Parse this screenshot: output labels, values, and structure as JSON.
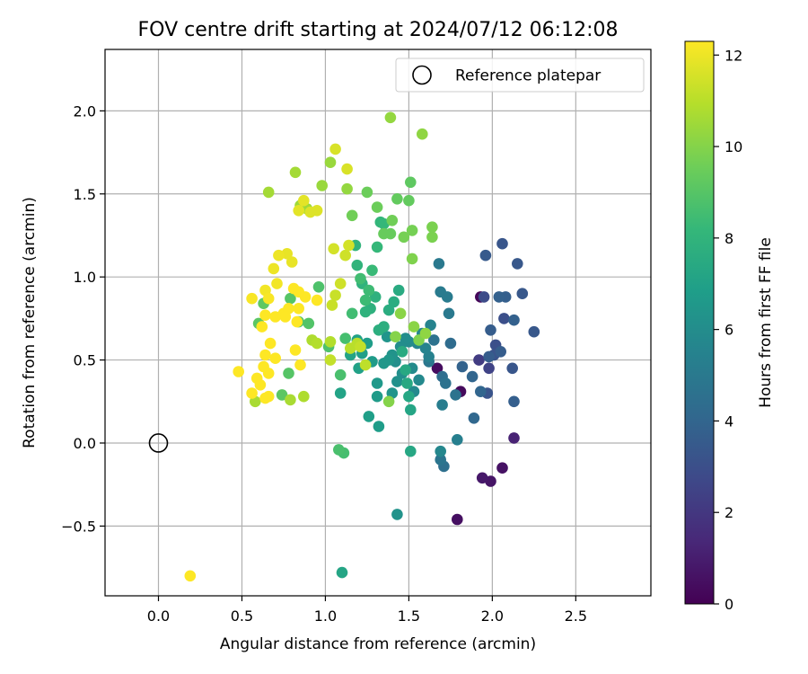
{
  "chart_data": {
    "type": "scatter",
    "title": "FOV centre drift starting at 2024/07/12 06:12:08",
    "xlabel": "Angular distance from reference (arcmin)",
    "ylabel": "Rotation from reference (arcmin)",
    "xlim": [
      -0.32,
      2.95
    ],
    "ylim": [
      -0.92,
      2.37
    ],
    "xticks": [
      0.0,
      0.5,
      1.0,
      1.5,
      2.0,
      2.5
    ],
    "xtick_labels": [
      "0.0",
      "0.5",
      "1.0",
      "1.5",
      "2.0",
      "2.5"
    ],
    "yticks": [
      -0.5,
      0.0,
      0.5,
      1.0,
      1.5,
      2.0
    ],
    "ytick_labels": [
      "−0.5",
      "0.0",
      "0.5",
      "1.0",
      "1.5",
      "2.0"
    ],
    "grid": true,
    "legend": {
      "placement": "top-right",
      "entries": [
        "Reference platepar"
      ]
    },
    "reference_point": {
      "x": 0.0,
      "y": 0.0,
      "marker": "hollow-circle"
    },
    "colorbar": {
      "label": "Hours from first FF file",
      "colormap": "viridis",
      "range": [
        0,
        12.3
      ],
      "ticks": [
        0,
        2,
        4,
        6,
        8,
        10,
        12
      ],
      "tick_labels": [
        "0",
        "2",
        "4",
        "6",
        "8",
        "10",
        "12"
      ]
    },
    "colormap_stops": [
      "#440154",
      "#482878",
      "#3e4989",
      "#31688e",
      "#26828e",
      "#1f9e89",
      "#35b779",
      "#6ece58",
      "#b5de2b",
      "#fde725"
    ],
    "point_fields": [
      "x",
      "y",
      "hours"
    ],
    "points": [
      [
        1.93,
        0.88,
        0.2
      ],
      [
        1.81,
        0.31,
        0.3
      ],
      [
        1.67,
        0.45,
        0.4
      ],
      [
        1.79,
        -0.46,
        0.5
      ],
      [
        2.06,
        -0.15,
        0.6
      ],
      [
        1.99,
        -0.23,
        0.7
      ],
      [
        1.94,
        -0.21,
        0.8
      ],
      [
        2.13,
        0.03,
        1.2
      ],
      [
        1.92,
        0.5,
        2.2
      ],
      [
        1.98,
        0.45,
        2.5
      ],
      [
        1.95,
        0.88,
        2.8
      ],
      [
        2.02,
        0.59,
        3.0
      ],
      [
        2.07,
        0.75,
        3.0
      ],
      [
        2.01,
        0.53,
        3.2
      ],
      [
        1.97,
        0.3,
        3.2
      ],
      [
        2.06,
        1.2,
        3.3
      ],
      [
        2.12,
        0.45,
        3.3
      ],
      [
        2.18,
        0.9,
        3.4
      ],
      [
        2.15,
        1.08,
        3.4
      ],
      [
        2.25,
        0.67,
        3.4
      ],
      [
        1.96,
        1.13,
        3.5
      ],
      [
        1.99,
        0.68,
        3.6
      ],
      [
        1.98,
        0.52,
        3.6
      ],
      [
        2.05,
        0.55,
        3.6
      ],
      [
        2.08,
        0.88,
        3.7
      ],
      [
        2.13,
        0.25,
        3.7
      ],
      [
        2.04,
        0.88,
        3.8
      ],
      [
        2.13,
        0.74,
        3.8
      ],
      [
        1.82,
        0.46,
        3.9
      ],
      [
        1.88,
        0.4,
        4.0
      ],
      [
        1.93,
        0.31,
        4.0
      ],
      [
        1.89,
        0.15,
        4.1
      ],
      [
        1.75,
        0.6,
        4.3
      ],
      [
        1.7,
        0.4,
        4.4
      ],
      [
        1.71,
        -0.14,
        4.5
      ],
      [
        1.65,
        0.62,
        4.6
      ],
      [
        1.72,
        0.36,
        4.6
      ],
      [
        1.78,
        0.29,
        4.7
      ],
      [
        1.69,
        -0.1,
        4.8
      ],
      [
        1.62,
        0.49,
        4.9
      ],
      [
        1.74,
        0.78,
        5.0
      ],
      [
        1.68,
        1.08,
        5.0
      ],
      [
        1.69,
        0.91,
        5.1
      ],
      [
        1.73,
        0.88,
        5.1
      ],
      [
        1.7,
        0.23,
        5.2
      ],
      [
        1.79,
        0.02,
        5.3
      ],
      [
        1.62,
        0.52,
        5.4
      ],
      [
        1.63,
        0.71,
        5.5
      ],
      [
        1.6,
        0.57,
        5.5
      ],
      [
        1.55,
        0.6,
        5.6
      ],
      [
        1.58,
        0.66,
        5.7
      ],
      [
        1.69,
        -0.05,
        5.7
      ],
      [
        1.53,
        0.31,
        5.8
      ],
      [
        1.56,
        0.38,
        5.8
      ],
      [
        1.52,
        0.45,
        5.9
      ],
      [
        1.5,
        0.61,
        5.9
      ],
      [
        1.48,
        0.63,
        6.0
      ],
      [
        1.45,
        0.58,
        6.0
      ],
      [
        1.46,
        0.42,
        6.1
      ],
      [
        1.42,
        0.49,
        6.1
      ],
      [
        1.43,
        0.37,
        6.2
      ],
      [
        1.43,
        -0.43,
        6.3
      ],
      [
        1.4,
        0.53,
        6.3
      ],
      [
        1.4,
        0.3,
        6.4
      ],
      [
        1.37,
        0.64,
        6.4
      ],
      [
        1.38,
        0.5,
        6.5
      ],
      [
        1.35,
        0.48,
        6.5
      ],
      [
        1.31,
        0.36,
        6.6
      ],
      [
        1.31,
        0.28,
        6.7
      ],
      [
        1.28,
        0.49,
        6.7
      ],
      [
        1.32,
        0.1,
        6.8
      ],
      [
        1.25,
        0.6,
        6.8
      ],
      [
        1.26,
        0.16,
        6.9
      ],
      [
        1.22,
        0.54,
        6.9
      ],
      [
        1.19,
        0.62,
        7.0
      ],
      [
        1.2,
        0.45,
        7.0
      ],
      [
        1.15,
        0.53,
        7.1
      ],
      [
        1.09,
        0.3,
        7.1
      ],
      [
        1.1,
        -0.78,
        7.2
      ],
      [
        1.51,
        0.2,
        7.2
      ],
      [
        1.51,
        -0.05,
        7.3
      ],
      [
        1.5,
        0.28,
        7.3
      ],
      [
        1.49,
        0.36,
        7.4
      ],
      [
        1.48,
        0.44,
        7.4
      ],
      [
        1.46,
        0.55,
        7.5
      ],
      [
        1.44,
        0.92,
        7.5
      ],
      [
        1.41,
        0.85,
        7.6
      ],
      [
        1.38,
        0.8,
        7.6
      ],
      [
        1.35,
        0.7,
        7.7
      ],
      [
        1.32,
        0.68,
        7.7
      ],
      [
        1.3,
        0.88,
        7.8
      ],
      [
        1.27,
        0.81,
        7.8
      ],
      [
        1.24,
        0.79,
        7.9
      ],
      [
        1.22,
        0.96,
        7.9
      ],
      [
        1.19,
        1.07,
        8.0
      ],
      [
        1.18,
        1.19,
        8.0
      ],
      [
        1.33,
        1.33,
        8.1
      ],
      [
        1.35,
        1.32,
        8.2
      ],
      [
        1.31,
        1.18,
        8.2
      ],
      [
        1.28,
        1.04,
        8.3
      ],
      [
        1.26,
        0.92,
        8.4
      ],
      [
        1.24,
        0.86,
        8.4
      ],
      [
        1.21,
        0.99,
        8.5
      ],
      [
        1.16,
        0.78,
        8.5
      ],
      [
        1.12,
        0.63,
        8.6
      ],
      [
        1.11,
        -0.06,
        8.6
      ],
      [
        1.08,
        -0.04,
        8.7
      ],
      [
        1.09,
        0.41,
        8.7
      ],
      [
        1.02,
        0.58,
        8.8
      ],
      [
        0.96,
        0.94,
        8.8
      ],
      [
        0.9,
        0.72,
        8.9
      ],
      [
        0.84,
        0.73,
        8.9
      ],
      [
        0.79,
        0.87,
        9.0
      ],
      [
        0.78,
        0.42,
        9.0
      ],
      [
        0.74,
        0.29,
        9.1
      ],
      [
        0.6,
        0.72,
        9.1
      ],
      [
        0.63,
        0.84,
        9.2
      ],
      [
        1.51,
        1.57,
        9.2
      ],
      [
        1.5,
        1.46,
        9.3
      ],
      [
        1.43,
        1.47,
        9.3
      ],
      [
        1.39,
        1.26,
        9.4
      ],
      [
        1.35,
        1.26,
        9.4
      ],
      [
        1.31,
        1.42,
        9.5
      ],
      [
        1.25,
        1.51,
        9.5
      ],
      [
        1.16,
        1.37,
        9.6
      ],
      [
        1.4,
        1.34,
        9.6
      ],
      [
        1.47,
        1.24,
        9.7
      ],
      [
        1.52,
        1.28,
        9.7
      ],
      [
        1.64,
        1.3,
        9.8
      ],
      [
        1.64,
        1.24,
        9.8
      ],
      [
        1.52,
        1.11,
        9.9
      ],
      [
        1.56,
        0.62,
        9.9
      ],
      [
        1.38,
        0.25,
        10.0
      ],
      [
        1.42,
        0.64,
        10.0
      ],
      [
        1.45,
        0.78,
        10.1
      ],
      [
        1.53,
        0.7,
        10.1
      ],
      [
        1.6,
        0.66,
        10.2
      ],
      [
        1.58,
        1.86,
        10.2
      ],
      [
        1.39,
        1.96,
        10.3
      ],
      [
        1.13,
        1.53,
        10.3
      ],
      [
        1.03,
        1.69,
        10.4
      ],
      [
        0.98,
        1.55,
        10.4
      ],
      [
        0.85,
        1.43,
        10.5
      ],
      [
        0.89,
        1.41,
        10.5
      ],
      [
        0.82,
        1.63,
        10.6
      ],
      [
        0.66,
        1.51,
        10.6
      ],
      [
        0.58,
        0.25,
        10.7
      ],
      [
        0.79,
        0.26,
        10.7
      ],
      [
        0.87,
        0.28,
        10.8
      ],
      [
        0.92,
        0.62,
        10.8
      ],
      [
        0.95,
        0.6,
        10.9
      ],
      [
        1.03,
        0.61,
        10.9
      ],
      [
        1.15,
        0.57,
        11.0
      ],
      [
        1.19,
        0.6,
        11.0
      ],
      [
        1.24,
        0.47,
        11.1
      ],
      [
        1.21,
        0.58,
        11.2
      ],
      [
        1.03,
        0.5,
        11.2
      ],
      [
        1.04,
        0.83,
        11.3
      ],
      [
        1.06,
        0.89,
        11.3
      ],
      [
        1.09,
        0.96,
        11.4
      ],
      [
        1.12,
        1.13,
        11.4
      ],
      [
        1.14,
        1.19,
        11.5
      ],
      [
        1.05,
        1.17,
        11.5
      ],
      [
        1.06,
        1.77,
        11.6
      ],
      [
        1.13,
        1.65,
        11.6
      ],
      [
        0.95,
        1.4,
        11.7
      ],
      [
        0.91,
        1.39,
        11.7
      ],
      [
        0.87,
        1.46,
        11.8
      ],
      [
        0.84,
        1.4,
        11.8
      ],
      [
        0.8,
        1.09,
        11.9
      ],
      [
        0.77,
        1.14,
        11.9
      ],
      [
        0.72,
        1.13,
        12.0
      ],
      [
        0.69,
        1.05,
        12.0
      ],
      [
        0.71,
        0.96,
        12.1
      ],
      [
        0.64,
        0.92,
        12.1
      ],
      [
        0.66,
        0.87,
        12.2
      ],
      [
        0.56,
        0.87,
        12.2
      ],
      [
        0.75,
        0.78,
        12.3
      ],
      [
        0.78,
        0.81,
        12.3
      ],
      [
        0.83,
        0.73,
        12.3
      ],
      [
        0.81,
        0.93,
        12.3
      ],
      [
        0.88,
        0.88,
        12.3
      ],
      [
        0.84,
        0.81,
        12.3
      ],
      [
        0.76,
        0.76,
        12.3
      ],
      [
        0.7,
        0.76,
        12.3
      ],
      [
        0.64,
        0.77,
        12.3
      ],
      [
        0.62,
        0.7,
        12.3
      ],
      [
        0.67,
        0.6,
        12.3
      ],
      [
        0.63,
        0.46,
        12.3
      ],
      [
        0.66,
        0.42,
        12.3
      ],
      [
        0.59,
        0.39,
        12.3
      ],
      [
        0.61,
        0.35,
        12.3
      ],
      [
        0.66,
        0.28,
        12.3
      ],
      [
        0.64,
        0.27,
        12.3
      ],
      [
        0.56,
        0.3,
        12.3
      ],
      [
        0.48,
        0.43,
        12.3
      ],
      [
        0.64,
        0.53,
        12.3
      ],
      [
        0.7,
        0.51,
        12.3
      ],
      [
        0.82,
        0.56,
        12.3
      ],
      [
        0.85,
        0.47,
        12.3
      ],
      [
        0.84,
        0.91,
        12.3
      ],
      [
        0.95,
        0.86,
        12.3
      ],
      [
        0.19,
        -0.8,
        12.3
      ]
    ]
  }
}
